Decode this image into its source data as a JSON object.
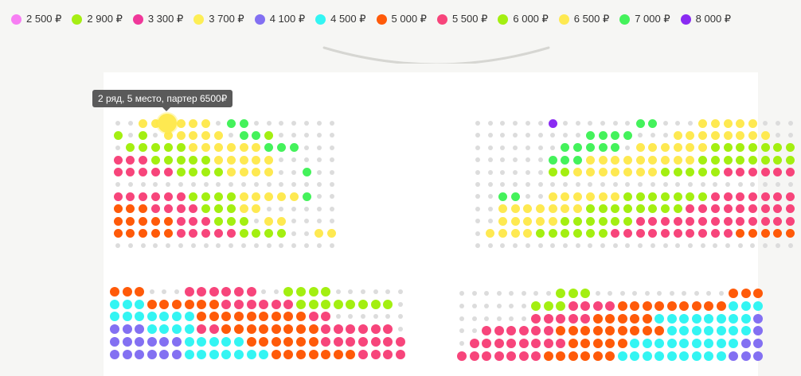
{
  "legend": [
    {
      "price": "2 500 ₽",
      "color": "#f77ef3"
    },
    {
      "price": "2 900 ₽",
      "color": "#a6ee13"
    },
    {
      "price": "3 300 ₽",
      "color": "#f0389a"
    },
    {
      "price": "3 700 ₽",
      "color": "#fdee55"
    },
    {
      "price": "4 100 ₽",
      "color": "#8370f2"
    },
    {
      "price": "4 500 ₽",
      "color": "#33f5f3"
    },
    {
      "price": "5 000 ₽",
      "color": "#ff5a09"
    },
    {
      "price": "5 500 ₽",
      "color": "#f7457b"
    },
    {
      "price": "6 000 ₽",
      "color": "#a3ef11"
    },
    {
      "price": "6 500 ₽",
      "color": "#fee951"
    },
    {
      "price": "7 000 ₽",
      "color": "#44f25b"
    },
    {
      "price": "8 000 ₽",
      "color": "#8a2bf2"
    }
  ],
  "tooltip": "2 ряд, 5 место, партер 6500₽",
  "empty_color": "#dcdcdc",
  "blocks": [
    {
      "id": "left-top",
      "rows": [
        "..YYYYYY.GG.......",
        "L.L.YYYYY.GGL.....",
        ".LLLLLYYYYYYGGG...",
        "PPPLLLLLYYYYY.....",
        "PPPPPLLLLYYYY..G..",
        "..................",
        "PPPPPPLLLLYYYYYG..",
        "OOOPPPPLLLYY......",
        "OOOOOPPPLLL.YY....",
        "OOOOOPPPPPLLLL..YY",
        ".................."
      ]
    },
    {
      "id": "right-top",
      "rows": [
        "......V......GG...YYYYY...",
        ".........GGGG...YYYYYYYY..",
        ".......GGGGG.YYYYYYLLLLLLL",
        "......GGGYYYYYYYYYLLLLLLLL",
        "......LLYYYYYYYLLLLLPPPPPP",
        "..........................",
        "..GG..YYYYYYLLLLLLLPPPPPPP",
        "..YYYYYYYLLLLLLLLPPPPPPPPP",
        "..YYYYYLLLLLLPPPPPPPPPPPPP",
        ".YYYYLLLLLLPPPPPPPPPPOOOOO",
        ".........................."
      ]
    },
    {
      "id": "left-bottom",
      "rows": [
        "OOO...PPPPPP..LLLL......",
        "CCCOOOOOOPPPPPPLLLLLLLL.",
        "CCCCCCCOOOOOOOOOPP......",
        "BBBCCCCPPOOOOOOOOPPPPPP.",
        "BBBBBBCCCCCOOOOOOPPPPPPP",
        "BBBBBBCCCCCCCOOOOOOOPPPP"
      ]
    },
    {
      "id": "right-bottom",
      "rows": [
        "........LLL...........OOO",
        "......LLLPPPPOOOOOOOOOCCC",
        "......PPPPPOOOOOCCCCCCCCB",
        "..PPPPPPOOOOOOOOOCCCCCCCB",
        ".PPPPPPPPOOOOOCCCCCCCCCBB",
        "PPPPPPPOOOOOOCCCCCCCCCBBB"
      ]
    }
  ],
  "seat_colors": {
    "Y": "#fee951",
    "L": "#a3ef11",
    "G": "#44f25b",
    "P": "#f7457b",
    "O": "#ff5a09",
    "C": "#33f5f3",
    "B": "#8370f2",
    "V": "#8a2bf2"
  }
}
